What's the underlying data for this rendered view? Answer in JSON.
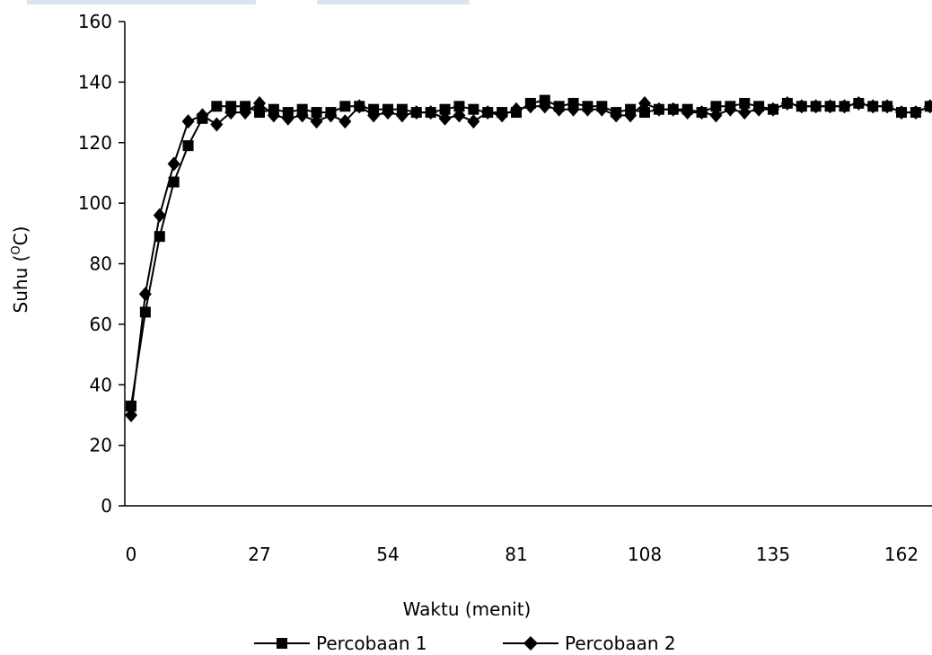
{
  "chart_data": {
    "type": "line",
    "title": "",
    "xlabel": "Waktu (menit)",
    "ylabel": "Suhu (OC)",
    "ylabel_main": "Suhu (",
    "ylabel_sup": "O",
    "ylabel_end": "C)",
    "xlim": [
      0,
      171
    ],
    "ylim": [
      0,
      160
    ],
    "xticks": [
      0,
      27,
      54,
      81,
      108,
      135,
      162
    ],
    "yticks": [
      0,
      20,
      40,
      60,
      80,
      100,
      120,
      140,
      160
    ],
    "grid": false,
    "legend_position": "bottom",
    "series": [
      {
        "name": "Percobaan 1",
        "marker": "square",
        "color": "#000000",
        "x": [
          0,
          3,
          6,
          9,
          12,
          15,
          18,
          21,
          24,
          27,
          30,
          33,
          36,
          39,
          42,
          45,
          48,
          51,
          54,
          57,
          60,
          63,
          66,
          69,
          72,
          75,
          78,
          81,
          84,
          87,
          90,
          93,
          96,
          99,
          102,
          105,
          108,
          111,
          114,
          117,
          120,
          123,
          126,
          129,
          132,
          135,
          138,
          141,
          144,
          147,
          150,
          153,
          156,
          159,
          162,
          165,
          168,
          171
        ],
        "y": [
          33,
          64,
          89,
          107,
          119,
          128,
          132,
          132,
          132,
          130,
          131,
          130,
          131,
          130,
          130,
          132,
          132,
          131,
          131,
          131,
          130,
          130,
          131,
          132,
          131,
          130,
          130,
          130,
          133,
          134,
          132,
          133,
          132,
          132,
          130,
          131,
          130,
          131,
          131,
          131,
          130,
          132,
          132,
          133,
          132,
          131,
          133,
          132,
          132,
          132,
          132,
          133,
          132,
          132,
          130,
          130,
          132,
          132
        ]
      },
      {
        "name": "Percobaan 2",
        "marker": "diamond",
        "color": "#000000",
        "x": [
          0,
          3,
          6,
          9,
          12,
          15,
          18,
          21,
          24,
          27,
          30,
          33,
          36,
          39,
          42,
          45,
          48,
          51,
          54,
          57,
          60,
          63,
          66,
          69,
          72,
          75,
          78,
          81,
          84,
          87,
          90,
          93,
          96,
          99,
          102,
          105,
          108,
          111,
          114,
          117,
          120,
          123,
          126,
          129,
          132,
          135,
          138,
          141,
          144,
          147,
          150,
          153,
          156,
          159,
          162,
          165,
          168,
          171
        ],
        "y": [
          30,
          70,
          96,
          113,
          127,
          129,
          126,
          130,
          130,
          133,
          129,
          128,
          129,
          127,
          129,
          127,
          132,
          129,
          130,
          129,
          130,
          130,
          128,
          129,
          127,
          130,
          129,
          131,
          132,
          132,
          131,
          131,
          131,
          131,
          129,
          129,
          133,
          131,
          131,
          130,
          130,
          129,
          131,
          130,
          131,
          131,
          133,
          132,
          132,
          132,
          132,
          133,
          132,
          132,
          130,
          130,
          132,
          132
        ]
      }
    ]
  }
}
